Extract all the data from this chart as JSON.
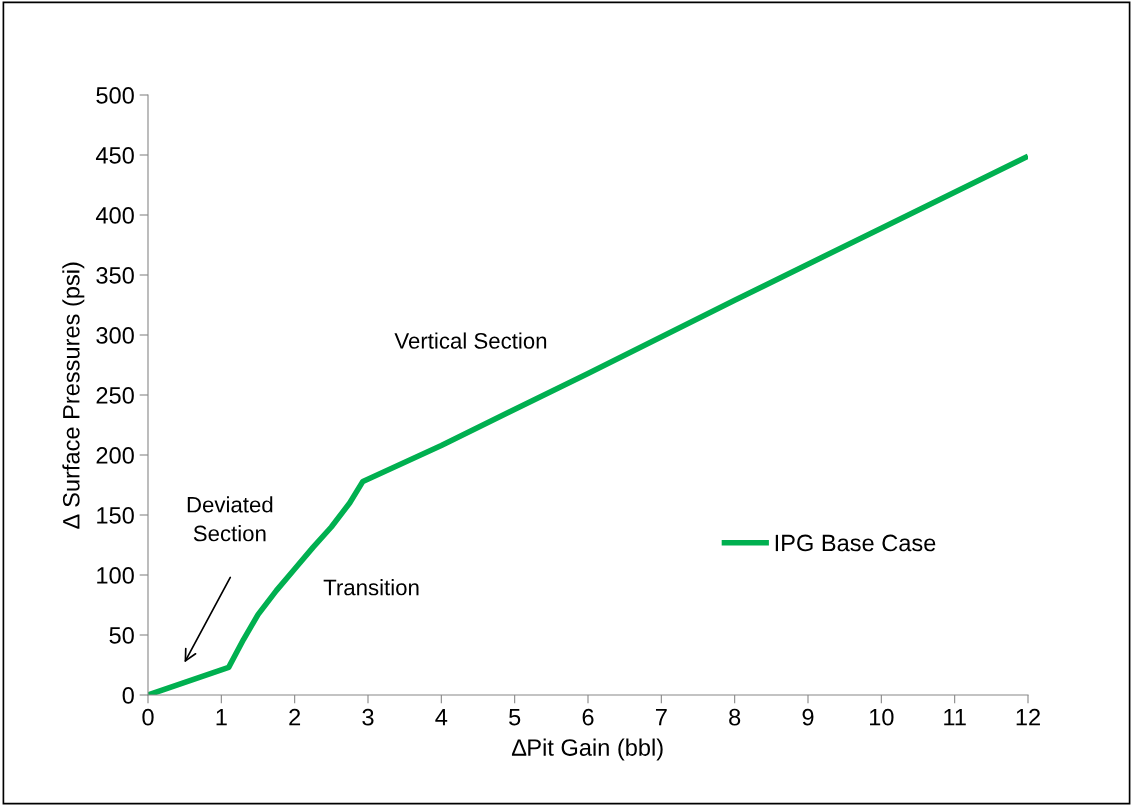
{
  "chart_data": {
    "type": "line",
    "xlabel": "∆Pit Gain (bbl)",
    "ylabel": "∆ Surface Pressures (psi)",
    "x": [
      0,
      1.1,
      1.3,
      1.5,
      1.75,
      2,
      2.25,
      2.5,
      2.75,
      2.93,
      4,
      6,
      8,
      10,
      12
    ],
    "series": [
      {
        "name": "IPG Base Case",
        "color": "#00b050",
        "values": [
          0,
          23,
          46,
          67,
          87,
          105,
          123,
          140,
          160,
          178,
          208,
          268,
          329,
          389,
          449
        ]
      }
    ],
    "xlim": [
      0,
      12
    ],
    "xticks": [
      0,
      1,
      2,
      3,
      4,
      5,
      6,
      7,
      8,
      9,
      10,
      11,
      12
    ],
    "ylim": [
      0,
      500
    ],
    "yticks": [
      0,
      50,
      100,
      150,
      200,
      250,
      300,
      350,
      400,
      450,
      500
    ],
    "grid": false,
    "legend": "right",
    "marker": "none",
    "line_style": "solid",
    "annotations": [
      "Vertical Section",
      "Transition",
      "Deviated\nSection"
    ]
  }
}
